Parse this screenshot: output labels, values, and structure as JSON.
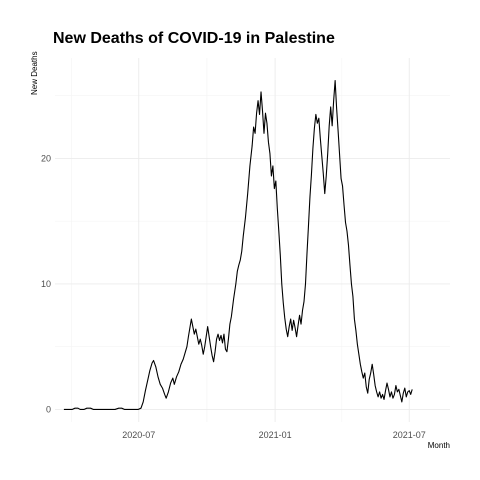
{
  "chart_data": {
    "type": "line",
    "title": "New Deaths of COVID-19 in Palestine",
    "xlabel": "Month",
    "ylabel": "New Deaths",
    "x_ticks": [
      {
        "date": "2020-07-01",
        "label": "2020-07"
      },
      {
        "date": "2021-01-01",
        "label": "2021-01"
      },
      {
        "date": "2021-07-01",
        "label": "2021-07"
      }
    ],
    "y_ticks": [
      0,
      10,
      20
    ],
    "xlim": [
      "2020-03-10",
      "2021-08-25"
    ],
    "ylim": [
      -1,
      28
    ],
    "grid": true,
    "legend": "none",
    "series": [
      {
        "color": "#000000",
        "points": [
          [
            "2020-03-22",
            0
          ],
          [
            "2020-03-26",
            0
          ],
          [
            "2020-04-02",
            0
          ],
          [
            "2020-04-06",
            0.1
          ],
          [
            "2020-04-10",
            0.1
          ],
          [
            "2020-04-13",
            0
          ],
          [
            "2020-04-18",
            0
          ],
          [
            "2020-04-22",
            0.1
          ],
          [
            "2020-04-27",
            0.1
          ],
          [
            "2020-05-01",
            0
          ],
          [
            "2020-05-10",
            0
          ],
          [
            "2020-05-20",
            0
          ],
          [
            "2020-05-30",
            0
          ],
          [
            "2020-06-04",
            0.1
          ],
          [
            "2020-06-08",
            0.1
          ],
          [
            "2020-06-12",
            0
          ],
          [
            "2020-06-22",
            0
          ],
          [
            "2020-06-30",
            0
          ],
          [
            "2020-07-04",
            0.1
          ],
          [
            "2020-07-07",
            0.6
          ],
          [
            "2020-07-10",
            1.5
          ],
          [
            "2020-07-13",
            2.3
          ],
          [
            "2020-07-16",
            3.1
          ],
          [
            "2020-07-19",
            3.7
          ],
          [
            "2020-07-21",
            3.9
          ],
          [
            "2020-07-24",
            3.4
          ],
          [
            "2020-07-27",
            2.6
          ],
          [
            "2020-07-30",
            2.0
          ],
          [
            "2020-08-02",
            1.7
          ],
          [
            "2020-08-05",
            1.2
          ],
          [
            "2020-08-07",
            0.9
          ],
          [
            "2020-08-10",
            1.4
          ],
          [
            "2020-08-13",
            2.1
          ],
          [
            "2020-08-16",
            2.5
          ],
          [
            "2020-08-18",
            2.0
          ],
          [
            "2020-08-21",
            2.6
          ],
          [
            "2020-08-24",
            3.0
          ],
          [
            "2020-08-27",
            3.6
          ],
          [
            "2020-08-30",
            4.0
          ],
          [
            "2020-09-02",
            4.6
          ],
          [
            "2020-09-04",
            5.0
          ],
          [
            "2020-09-06",
            5.8
          ],
          [
            "2020-09-08",
            6.5
          ],
          [
            "2020-09-10",
            7.2
          ],
          [
            "2020-09-12",
            6.6
          ],
          [
            "2020-09-14",
            6.0
          ],
          [
            "2020-09-16",
            6.4
          ],
          [
            "2020-09-18",
            5.8
          ],
          [
            "2020-09-20",
            5.2
          ],
          [
            "2020-09-22",
            5.6
          ],
          [
            "2020-09-24",
            5.1
          ],
          [
            "2020-09-26",
            4.4
          ],
          [
            "2020-09-28",
            5.0
          ],
          [
            "2020-09-30",
            5.8
          ],
          [
            "2020-10-02",
            6.6
          ],
          [
            "2020-10-04",
            5.8
          ],
          [
            "2020-10-06",
            5.0
          ],
          [
            "2020-10-08",
            4.3
          ],
          [
            "2020-10-10",
            3.8
          ],
          [
            "2020-10-12",
            4.6
          ],
          [
            "2020-10-14",
            5.6
          ],
          [
            "2020-10-16",
            6.0
          ],
          [
            "2020-10-18",
            5.5
          ],
          [
            "2020-10-20",
            5.9
          ],
          [
            "2020-10-22",
            5.3
          ],
          [
            "2020-10-24",
            6.0
          ],
          [
            "2020-10-26",
            4.8
          ],
          [
            "2020-10-28",
            4.6
          ],
          [
            "2020-10-30",
            5.6
          ],
          [
            "2020-11-01",
            6.8
          ],
          [
            "2020-11-03",
            7.4
          ],
          [
            "2020-11-06",
            8.8
          ],
          [
            "2020-11-09",
            10.0
          ],
          [
            "2020-11-11",
            11.0
          ],
          [
            "2020-11-13",
            11.5
          ],
          [
            "2020-11-15",
            11.9
          ],
          [
            "2020-11-17",
            12.6
          ],
          [
            "2020-11-19",
            13.8
          ],
          [
            "2020-11-22",
            15.3
          ],
          [
            "2020-11-25",
            17.2
          ],
          [
            "2020-11-28",
            19.4
          ],
          [
            "2020-12-01",
            21.0
          ],
          [
            "2020-12-03",
            22.5
          ],
          [
            "2020-12-05",
            22.0
          ],
          [
            "2020-12-07",
            23.6
          ],
          [
            "2020-12-09",
            24.6
          ],
          [
            "2020-12-11",
            23.5
          ],
          [
            "2020-12-13",
            25.3
          ],
          [
            "2020-12-15",
            23.8
          ],
          [
            "2020-12-17",
            22.0
          ],
          [
            "2020-12-19",
            23.6
          ],
          [
            "2020-12-21",
            22.8
          ],
          [
            "2020-12-23",
            21.3
          ],
          [
            "2020-12-25",
            20.4
          ],
          [
            "2020-12-27",
            18.6
          ],
          [
            "2020-12-29",
            19.4
          ],
          [
            "2020-12-31",
            17.6
          ],
          [
            "2021-01-02",
            18.2
          ],
          [
            "2021-01-04",
            16.0
          ],
          [
            "2021-01-06",
            14.2
          ],
          [
            "2021-01-08",
            12.3
          ],
          [
            "2021-01-10",
            10.0
          ],
          [
            "2021-01-12",
            8.5
          ],
          [
            "2021-01-14",
            7.3
          ],
          [
            "2021-01-16",
            6.4
          ],
          [
            "2021-01-18",
            5.8
          ],
          [
            "2021-01-20",
            6.6
          ],
          [
            "2021-01-22",
            7.2
          ],
          [
            "2021-01-24",
            6.3
          ],
          [
            "2021-01-26",
            7.1
          ],
          [
            "2021-01-28",
            6.5
          ],
          [
            "2021-01-30",
            5.8
          ],
          [
            "2021-02-01",
            6.7
          ],
          [
            "2021-02-03",
            7.5
          ],
          [
            "2021-02-05",
            6.8
          ],
          [
            "2021-02-07",
            7.9
          ],
          [
            "2021-02-09",
            8.6
          ],
          [
            "2021-02-11",
            10.0
          ],
          [
            "2021-02-13",
            12.4
          ],
          [
            "2021-02-15",
            14.6
          ],
          [
            "2021-02-17",
            16.9
          ],
          [
            "2021-02-19",
            18.7
          ],
          [
            "2021-02-21",
            20.8
          ],
          [
            "2021-02-23",
            22.4
          ],
          [
            "2021-02-25",
            23.5
          ],
          [
            "2021-02-27",
            22.8
          ],
          [
            "2021-03-01",
            23.2
          ],
          [
            "2021-03-03",
            21.6
          ],
          [
            "2021-03-05",
            20.2
          ],
          [
            "2021-03-07",
            18.8
          ],
          [
            "2021-03-09",
            17.2
          ],
          [
            "2021-03-11",
            18.6
          ],
          [
            "2021-03-13",
            20.4
          ],
          [
            "2021-03-15",
            22.6
          ],
          [
            "2021-03-17",
            24.1
          ],
          [
            "2021-03-19",
            22.6
          ],
          [
            "2021-03-21",
            24.6
          ],
          [
            "2021-03-23",
            26.2
          ],
          [
            "2021-03-25",
            24.0
          ],
          [
            "2021-03-27",
            22.2
          ],
          [
            "2021-03-29",
            20.3
          ],
          [
            "2021-03-31",
            18.4
          ],
          [
            "2021-04-02",
            17.8
          ],
          [
            "2021-04-04",
            16.3
          ],
          [
            "2021-04-06",
            14.9
          ],
          [
            "2021-04-08",
            14.2
          ],
          [
            "2021-04-10",
            13.1
          ],
          [
            "2021-04-12",
            11.5
          ],
          [
            "2021-04-14",
            10.0
          ],
          [
            "2021-04-16",
            9.0
          ],
          [
            "2021-04-18",
            7.2
          ],
          [
            "2021-04-20",
            6.3
          ],
          [
            "2021-04-22",
            5.2
          ],
          [
            "2021-04-24",
            4.4
          ],
          [
            "2021-04-26",
            3.6
          ],
          [
            "2021-04-28",
            3.0
          ],
          [
            "2021-04-30",
            2.5
          ],
          [
            "2021-05-02",
            2.9
          ],
          [
            "2021-05-04",
            1.8
          ],
          [
            "2021-05-06",
            1.3
          ],
          [
            "2021-05-08",
            2.4
          ],
          [
            "2021-05-10",
            2.9
          ],
          [
            "2021-05-12",
            3.6
          ],
          [
            "2021-05-14",
            2.8
          ],
          [
            "2021-05-16",
            1.9
          ],
          [
            "2021-05-18",
            1.4
          ],
          [
            "2021-05-20",
            1.0
          ],
          [
            "2021-05-22",
            1.4
          ],
          [
            "2021-05-24",
            0.9
          ],
          [
            "2021-05-26",
            1.2
          ],
          [
            "2021-05-28",
            0.8
          ],
          [
            "2021-05-30",
            1.5
          ],
          [
            "2021-06-01",
            2.1
          ],
          [
            "2021-06-03",
            1.6
          ],
          [
            "2021-06-05",
            1.0
          ],
          [
            "2021-06-07",
            1.4
          ],
          [
            "2021-06-09",
            0.9
          ],
          [
            "2021-06-11",
            1.2
          ],
          [
            "2021-06-13",
            1.9
          ],
          [
            "2021-06-15",
            1.4
          ],
          [
            "2021-06-17",
            1.6
          ],
          [
            "2021-06-19",
            1.1
          ],
          [
            "2021-06-21",
            0.6
          ],
          [
            "2021-06-23",
            1.3
          ],
          [
            "2021-06-25",
            1.7
          ],
          [
            "2021-06-27",
            1.0
          ],
          [
            "2021-06-29",
            1.4
          ],
          [
            "2021-07-01",
            1.5
          ],
          [
            "2021-07-03",
            1.2
          ],
          [
            "2021-07-05",
            1.6
          ]
        ]
      }
    ]
  }
}
